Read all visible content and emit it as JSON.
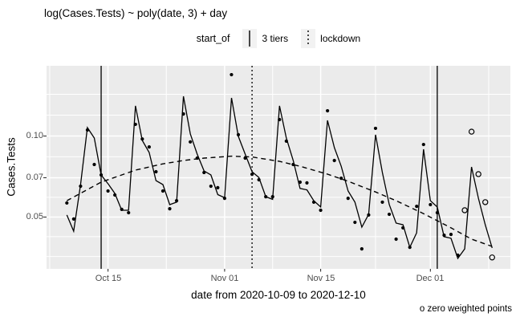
{
  "title": "log(Cases.Tests) ~ poly(date, 3) + day",
  "legend": {
    "title": "start_of",
    "items": [
      {
        "label": "3 tiers",
        "linetype": "solid"
      },
      {
        "label": "lockdown",
        "linetype": "dotted"
      }
    ]
  },
  "axes": {
    "y": {
      "title": "Cases.Tests",
      "ticks": [
        "0.10",
        "0.07",
        "0.05"
      ]
    },
    "x": {
      "title": "date from 2020-10-09 to 2020-12-10",
      "ticks": [
        "Oct 15",
        "Nov 01",
        "Nov 15",
        "Dec 01"
      ]
    }
  },
  "caption": "o zero weighted points",
  "colors": {
    "panel_background": "#EBEBEB",
    "gridline": "#FFFFFF",
    "tick_label": "#4D4D4D",
    "line": "#000000",
    "legend_key_background": "#F2F2F2"
  },
  "chart_data": {
    "type": "line",
    "subtype": "line+scatter with vertical event rules",
    "x_unit": "days since 2020-10-09",
    "x_domain": [
      "2020-10-09",
      "2020-12-10"
    ],
    "y_scale": "log10",
    "y_breaks": [
      0.05,
      0.07,
      0.1
    ],
    "y_minor_breaks": [
      0.0357,
      0.0423,
      0.0592,
      0.0837,
      0.1195,
      0.1429
    ],
    "x_breaks": [
      {
        "label": "Oct 15",
        "day": 6
      },
      {
        "label": "Nov 01",
        "day": 23
      },
      {
        "label": "Nov 15",
        "day": 37
      },
      {
        "label": "Dec 01",
        "day": 53
      }
    ],
    "x_minor_break_days": [
      -2.5,
      14.5,
      30,
      45,
      61.5
    ],
    "vlines": [
      {
        "series": "3 tiers",
        "date": "2020-10-14",
        "day": 5,
        "linetype": "solid"
      },
      {
        "series": "lockdown",
        "date": "2020-11-05",
        "day": 27,
        "linetype": "dotted"
      },
      {
        "series": "3 tiers",
        "date": "2020-12-02",
        "day": 54,
        "linetype": "solid"
      }
    ],
    "series": [
      {
        "name": "fitted (poly(date,3) + day)",
        "type": "line",
        "linetype": "solid",
        "day_start": 0,
        "values": [
          0.0509,
          0.0443,
          0.066,
          0.1075,
          0.0983,
          0.0717,
          0.0665,
          0.0612,
          0.053,
          0.053,
          0.1294,
          0.0963,
          0.0869,
          0.0683,
          0.066,
          0.0556,
          0.0568,
          0.1405,
          0.1017,
          0.0857,
          0.0742,
          0.0717,
          0.0606,
          0.059,
          0.1385,
          0.0997,
          0.0857,
          0.0737,
          0.0702,
          0.0595,
          0.0582,
          0.1294,
          0.0983,
          0.0811,
          0.0639,
          0.0631,
          0.0575,
          0.0545,
          0.1143,
          0.0905,
          0.0772,
          0.0625,
          0.0568,
          0.0459,
          0.0512,
          0.1011,
          0.0732,
          0.0556,
          0.0475,
          0.0468,
          0.0386,
          0.0437,
          0.0893,
          0.0575,
          0.0545,
          0.0423,
          0.0417,
          0.0351,
          0.0381,
          0.0768,
          0.0587,
          0.0468,
          0.0384
        ]
      },
      {
        "name": "trend poly(date,3)",
        "type": "line",
        "linetype": "dashed",
        "days": [
          0,
          5,
          10,
          14,
          17,
          20,
          24,
          27,
          31,
          34,
          38,
          41,
          45,
          48,
          52,
          56,
          59,
          62
        ],
        "values": [
          0.0575,
          0.0674,
          0.0747,
          0.0788,
          0.0811,
          0.0828,
          0.0842,
          0.0836,
          0.0805,
          0.0772,
          0.0722,
          0.0679,
          0.062,
          0.0575,
          0.0515,
          0.0456,
          0.0414,
          0.0389
        ]
      },
      {
        "name": "observations",
        "type": "scatter",
        "marker": "filled",
        "day_start": 0,
        "values": [
          0.0564,
          0.0492,
          0.0651,
          0.1053,
          0.0784,
          0.0717,
          0.0625,
          0.0604,
          0.0534,
          0.0519,
          0.1105,
          0.0975,
          0.0911,
          0.0737,
          0.0625,
          0.0537,
          0.0575,
          0.1208,
          0.0951,
          0.0828,
          0.0732,
          0.0651,
          0.0643,
          0.0587,
          0.169,
          0.1011,
          0.0828,
          0.0721,
          0.0688,
          0.0595,
          0.0595,
          0.1151,
          0.0957,
          0.0784,
          0.0674,
          0.067,
          0.0568,
          0.053,
          0.1241,
          0.0811,
          0.0697,
          0.0587,
          0.0478,
          0.0381,
          0.0509,
          0.1068,
          0.0568,
          0.0512,
          0.0414,
          0.0456,
          0.0386,
          0.0548,
          0.093,
          0.0556,
          0.0519,
          0.0428,
          0.0431,
          0.0361
        ]
      },
      {
        "name": "zero weighted points",
        "type": "scatter",
        "marker": "open",
        "days": [
          58,
          59,
          60,
          61,
          62
        ],
        "values": [
          0.053,
          0.1038,
          0.0722,
          0.0568,
          0.0354
        ]
      }
    ]
  }
}
